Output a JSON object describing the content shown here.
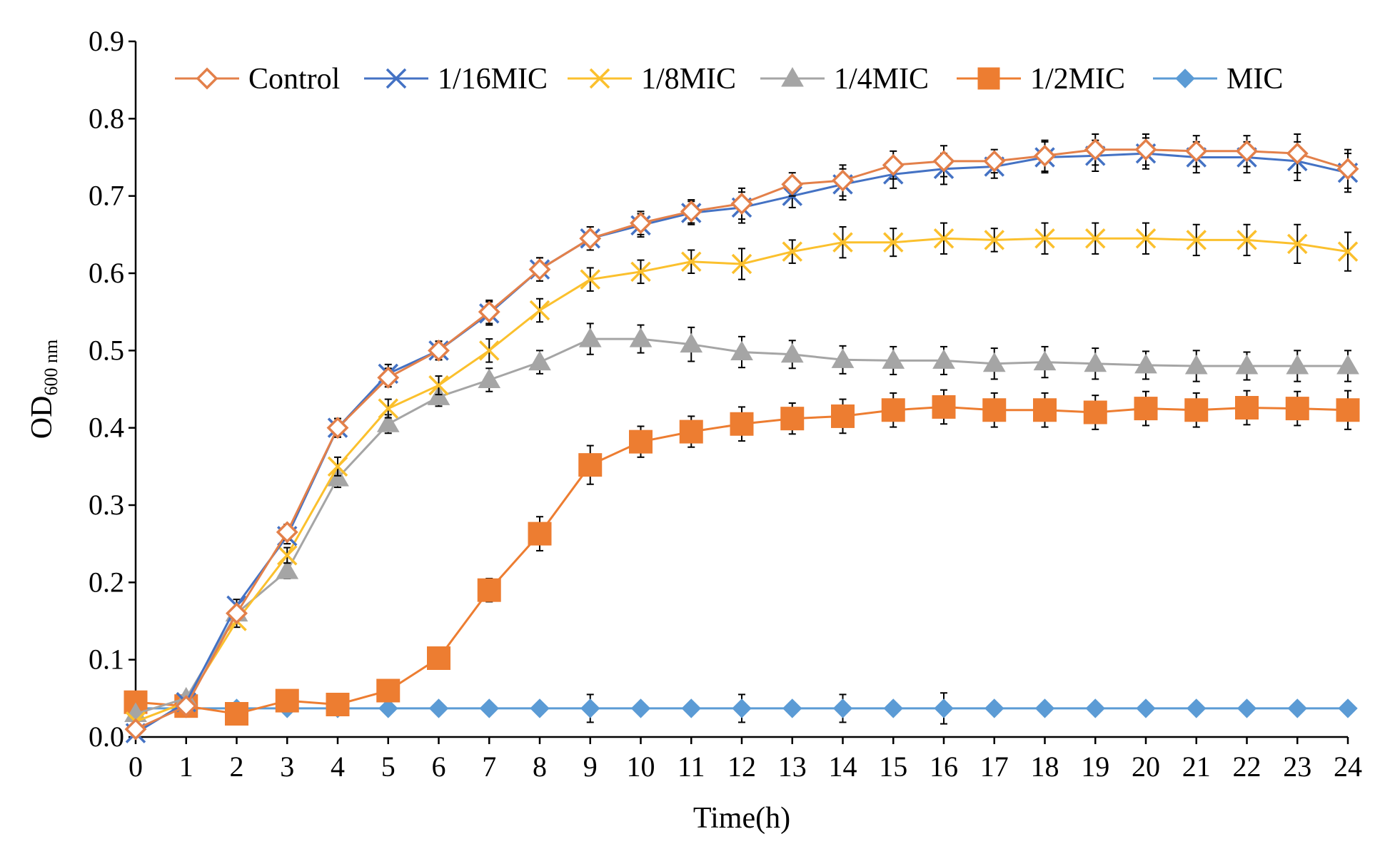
{
  "chart_data": {
    "type": "line",
    "title": "",
    "xlabel": "Time(h)",
    "ylabel_main": "OD",
    "ylabel_sub": "600 nm",
    "x": [
      0,
      1,
      2,
      3,
      4,
      5,
      6,
      7,
      8,
      9,
      10,
      11,
      12,
      13,
      14,
      15,
      16,
      17,
      18,
      19,
      20,
      21,
      22,
      23,
      24
    ],
    "xlim": [
      0,
      24
    ],
    "ylim": [
      0,
      0.9
    ],
    "yticks": [
      "0.0",
      "0.1",
      "0.2",
      "0.3",
      "0.4",
      "0.5",
      "0.6",
      "0.7",
      "0.8",
      "0.9"
    ],
    "legend_position": "top",
    "series": [
      {
        "name": "Control",
        "color": "#e3804a",
        "marker": "open-diamond",
        "values": [
          0.01,
          0.04,
          0.16,
          0.265,
          0.4,
          0.465,
          0.5,
          0.55,
          0.605,
          0.645,
          0.665,
          0.68,
          0.69,
          0.715,
          0.72,
          0.74,
          0.745,
          0.745,
          0.752,
          0.76,
          0.76,
          0.758,
          0.758,
          0.755,
          0.735
        ],
        "errors": [
          0.005,
          0.005,
          0.008,
          0.01,
          0.012,
          0.012,
          0.012,
          0.015,
          0.015,
          0.015,
          0.015,
          0.015,
          0.02,
          0.015,
          0.02,
          0.018,
          0.02,
          0.015,
          0.02,
          0.02,
          0.02,
          0.02,
          0.02,
          0.025,
          0.025
        ]
      },
      {
        "name": "1/16MIC",
        "color": "#4472c4",
        "marker": "x",
        "values": [
          0.005,
          0.045,
          0.17,
          0.26,
          0.4,
          0.47,
          0.5,
          0.548,
          0.605,
          0.645,
          0.662,
          0.678,
          0.685,
          0.7,
          0.715,
          0.728,
          0.735,
          0.738,
          0.75,
          0.752,
          0.755,
          0.75,
          0.75,
          0.745,
          0.73
        ],
        "errors": [
          0.005,
          0.005,
          0.008,
          0.01,
          0.012,
          0.012,
          0.012,
          0.015,
          0.015,
          0.015,
          0.015,
          0.015,
          0.02,
          0.015,
          0.02,
          0.018,
          0.02,
          0.015,
          0.02,
          0.02,
          0.02,
          0.02,
          0.02,
          0.025,
          0.025
        ]
      },
      {
        "name": "1/8MIC",
        "color": "#fbc02d",
        "marker": "x",
        "values": [
          0.02,
          0.045,
          0.15,
          0.235,
          0.35,
          0.425,
          0.455,
          0.5,
          0.552,
          0.592,
          0.602,
          0.615,
          0.612,
          0.628,
          0.64,
          0.64,
          0.645,
          0.643,
          0.645,
          0.645,
          0.645,
          0.643,
          0.643,
          0.638,
          0.628
        ],
        "errors": [
          0.005,
          0.005,
          0.008,
          0.01,
          0.012,
          0.012,
          0.012,
          0.015,
          0.015,
          0.015,
          0.015,
          0.015,
          0.02,
          0.015,
          0.02,
          0.018,
          0.02,
          0.015,
          0.02,
          0.02,
          0.02,
          0.02,
          0.02,
          0.025,
          0.025
        ]
      },
      {
        "name": "1/4MIC",
        "color": "#a5a5a5",
        "marker": "triangle",
        "values": [
          0.03,
          0.05,
          0.16,
          0.215,
          0.335,
          0.405,
          0.44,
          0.462,
          0.485,
          0.515,
          0.515,
          0.508,
          0.498,
          0.495,
          0.488,
          0.487,
          0.487,
          0.483,
          0.485,
          0.483,
          0.481,
          0.48,
          0.48,
          0.48,
          0.48
        ],
        "errors": [
          0.005,
          0.005,
          0.008,
          0.01,
          0.012,
          0.012,
          0.012,
          0.015,
          0.015,
          0.02,
          0.018,
          0.022,
          0.02,
          0.018,
          0.018,
          0.018,
          0.018,
          0.02,
          0.02,
          0.02,
          0.018,
          0.02,
          0.018,
          0.02,
          0.02
        ]
      },
      {
        "name": "1/2MIC",
        "color": "#ed7d31",
        "marker": "square",
        "values": [
          0.045,
          0.04,
          0.03,
          0.047,
          0.042,
          0.06,
          0.102,
          0.19,
          0.263,
          0.352,
          0.382,
          0.395,
          0.405,
          0.412,
          0.415,
          0.423,
          0.427,
          0.423,
          0.423,
          0.42,
          0.425,
          0.423,
          0.426,
          0.425,
          0.423
        ],
        "errors": [
          0.005,
          0.005,
          0.005,
          0.005,
          0.005,
          0.008,
          0.008,
          0.015,
          0.022,
          0.025,
          0.02,
          0.02,
          0.022,
          0.02,
          0.022,
          0.022,
          0.022,
          0.022,
          0.022,
          0.022,
          0.022,
          0.022,
          0.022,
          0.022,
          0.025
        ]
      },
      {
        "name": "MIC",
        "color": "#5b9bd5",
        "marker": "diamond",
        "values": [
          0.037,
          0.037,
          0.037,
          0.037,
          0.037,
          0.037,
          0.037,
          0.037,
          0.037,
          0.037,
          0.037,
          0.037,
          0.037,
          0.037,
          0.037,
          0.037,
          0.037,
          0.037,
          0.037,
          0.037,
          0.037,
          0.037,
          0.037,
          0.037,
          0.037
        ],
        "errors": [
          0.003,
          0.003,
          0.003,
          0.003,
          0.003,
          0.003,
          0.003,
          0.003,
          0.003,
          0.018,
          0.003,
          0.003,
          0.018,
          0.003,
          0.018,
          0.003,
          0.02,
          0.003,
          0.003,
          0.003,
          0.003,
          0.003,
          0.003,
          0.003,
          0.003
        ]
      }
    ]
  }
}
